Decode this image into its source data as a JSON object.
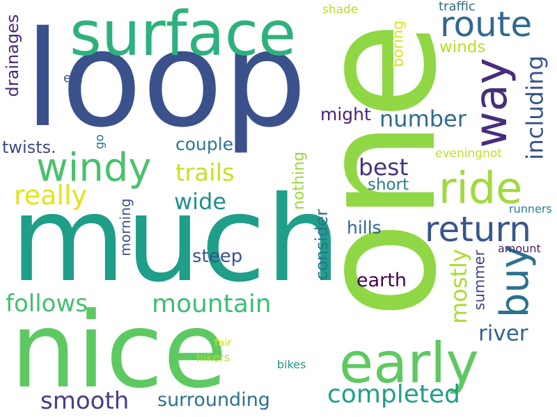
{
  "words": [
    {
      "key": "one",
      "text": "one",
      "color": "#8fd744",
      "vertical": true
    },
    {
      "key": "loop",
      "text": "loop",
      "color": "#3b518b",
      "vertical": false
    },
    {
      "key": "much",
      "text": "much",
      "color": "#1f9e89",
      "vertical": false
    },
    {
      "key": "nice",
      "text": "nice",
      "color": "#5ec962",
      "vertical": false
    },
    {
      "key": "surface",
      "text": "surface",
      "color": "#2db27d",
      "vertical": false
    },
    {
      "key": "early",
      "text": "early",
      "color": "#5ec962",
      "vertical": false
    },
    {
      "key": "windy",
      "text": "windy",
      "color": "#4ac16d",
      "vertical": false
    },
    {
      "key": "ride",
      "text": "ride",
      "color": "#a0da39",
      "vertical": false
    },
    {
      "key": "way",
      "text": "way",
      "color": "#472d7b",
      "vertical": true
    },
    {
      "key": "route",
      "text": "route",
      "color": "#31688e",
      "vertical": false
    },
    {
      "key": "return",
      "text": "return",
      "color": "#39568c",
      "vertical": false
    },
    {
      "key": "buy",
      "text": "buy",
      "color": "#2c728e",
      "vertical": true
    },
    {
      "key": "completed",
      "text": "completed",
      "color": "#1fa187",
      "vertical": false
    },
    {
      "key": "mountain",
      "text": "mountain",
      "color": "#3dbc74",
      "vertical": false
    },
    {
      "key": "follows",
      "text": "follows",
      "color": "#44bf70",
      "vertical": false
    },
    {
      "key": "smooth",
      "text": "smooth",
      "color": "#433e85",
      "vertical": false
    },
    {
      "key": "surrounding",
      "text": "surrounding",
      "color": "#2c728e",
      "vertical": false
    },
    {
      "key": "really",
      "text": "really",
      "color": "#e2e418",
      "vertical": false
    },
    {
      "key": "trails",
      "text": "trails",
      "color": "#c8e020",
      "vertical": false
    },
    {
      "key": "wide",
      "text": "wide",
      "color": "#218f8d",
      "vertical": false
    },
    {
      "key": "number",
      "text": "number",
      "color": "#2f6c8e",
      "vertical": false
    },
    {
      "key": "best",
      "text": "best",
      "color": "#46337e",
      "vertical": false
    },
    {
      "key": "short",
      "text": "short",
      "color": "#287d8e",
      "vertical": false
    },
    {
      "key": "river",
      "text": "river",
      "color": "#35608d",
      "vertical": false
    },
    {
      "key": "mostly",
      "text": "mostly",
      "color": "#aadc32",
      "vertical": true
    },
    {
      "key": "including",
      "text": "including",
      "color": "#39568c",
      "vertical": true
    },
    {
      "key": "earth",
      "text": "earth",
      "color": "#440154",
      "vertical": false
    },
    {
      "key": "hills",
      "text": "hills",
      "color": "#32658e",
      "vertical": false
    },
    {
      "key": "steep",
      "text": "steep",
      "color": "#3b528b",
      "vertical": false
    },
    {
      "key": "couple",
      "text": "couple",
      "color": "#2a788e",
      "vertical": false
    },
    {
      "key": "twists",
      "text": "twists.",
      "color": "#3e4a89",
      "vertical": false
    },
    {
      "key": "drainages",
      "text": "drainages",
      "color": "#482878",
      "vertical": true
    },
    {
      "key": "might",
      "text": "might",
      "color": "#482475",
      "vertical": false
    },
    {
      "key": "consider",
      "text": "consider",
      "color": "#2c738e",
      "vertical": true
    },
    {
      "key": "nothing",
      "text": "nothing",
      "color": "#9bd93c",
      "vertical": true
    },
    {
      "key": "morning",
      "text": "morning",
      "color": "#3b528b",
      "vertical": true
    },
    {
      "key": "summer",
      "text": "summer",
      "color": "#3f4788",
      "vertical": true
    },
    {
      "key": "boring",
      "text": "boring",
      "color": "#dde318",
      "vertical": true
    },
    {
      "key": "winds",
      "text": "winds",
      "color": "#b5de2b",
      "vertical": false
    },
    {
      "key": "traffic",
      "text": "traffic",
      "color": "#2e6e8e",
      "vertical": false
    },
    {
      "key": "shade",
      "text": "shade",
      "color": "#b8de29",
      "vertical": false
    },
    {
      "key": "etc",
      "text": "etc",
      "color": "#3e4a89",
      "vertical": false
    },
    {
      "key": "go",
      "text": "go",
      "color": "#2c728e",
      "vertical": true
    },
    {
      "key": "eveningnot",
      "text": "eveningnot",
      "color": "#c2df23",
      "vertical": false
    },
    {
      "key": "runners",
      "text": "runners",
      "color": "#26828e",
      "vertical": false
    },
    {
      "key": "amount",
      "text": "amount",
      "color": "#482173",
      "vertical": false
    },
    {
      "key": "fair",
      "text": "fair",
      "color": "#d8e219",
      "vertical": false
    },
    {
      "key": "hikers",
      "text": "hikers",
      "color": "#addc30",
      "vertical": false
    },
    {
      "key": "bikes",
      "text": "bikes",
      "color": "#20938c",
      "vertical": false
    }
  ]
}
